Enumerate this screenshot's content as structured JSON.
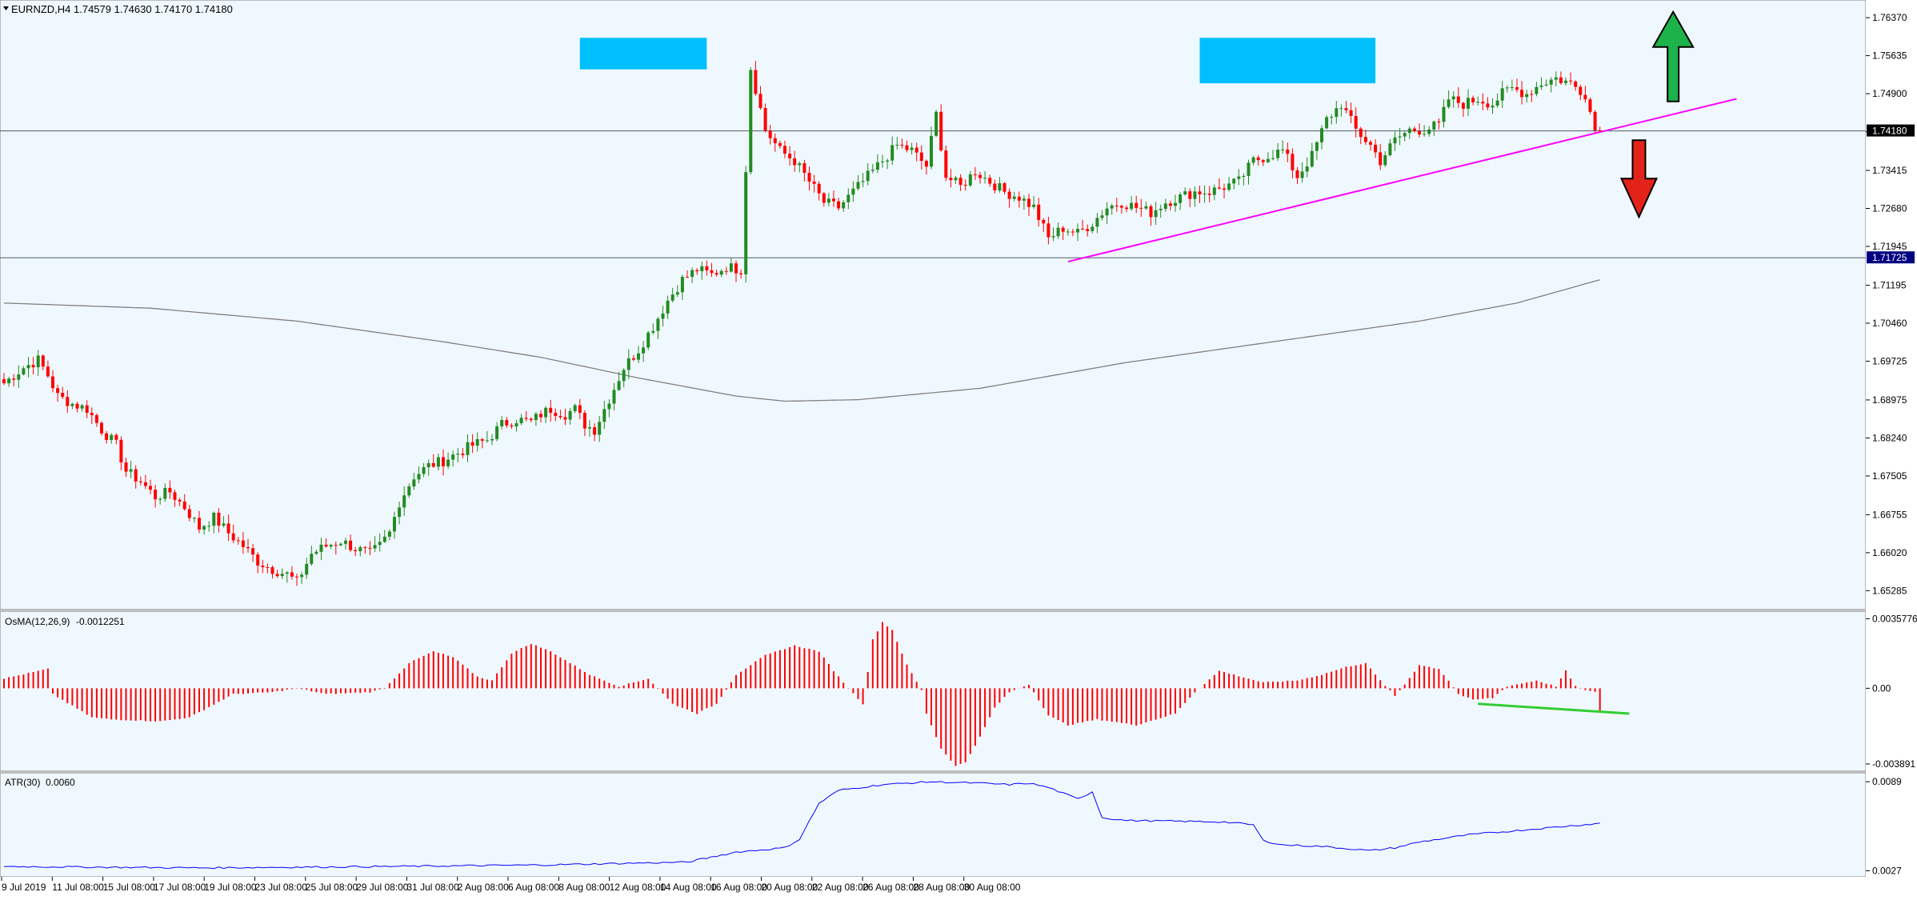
{
  "chart_data": [
    {
      "type": "candlestick",
      "title": "EURNZD,H4",
      "ohlc": "1.74579 1.74630 1.74170 1.74180",
      "last_price": "1.74180",
      "hline_price": "1.71725",
      "ylim": [
        1.6495,
        1.7665
      ],
      "price_ticks": [
        "1.76370",
        "1.75635",
        "1.74900",
        "1.74165",
        "1.73415",
        "1.72680",
        "1.71945",
        "1.71195",
        "1.70460",
        "1.69725",
        "1.68975",
        "1.68240",
        "1.67505",
        "1.66755",
        "1.66020",
        "1.65285"
      ],
      "price_tick_values": [
        1.7637,
        1.75635,
        1.749,
        1.74165,
        1.73415,
        1.7268,
        1.71945,
        1.71195,
        1.7046,
        1.69725,
        1.68975,
        1.6824,
        1.67505,
        1.66755,
        1.6602,
        1.65285
      ],
      "time_labels": [
        "9 Jul 2019",
        "11 Jul 08:00",
        "15 Jul 08:00",
        "17 Jul 08:00",
        "19 Jul 08:00",
        "23 Jul 08:00",
        "25 Jul 08:00",
        "29 Jul 08:00",
        "31 Jul 08:00",
        "2 Aug 08:00",
        "6 Aug 08:00",
        "8 Aug 08:00",
        "12 Aug 08:00",
        "14 Aug 08:00",
        "16 Aug 08:00",
        "20 Aug 08:00",
        "22 Aug 08:00",
        "26 Aug 08:00",
        "28 Aug 08:00",
        "30 Aug 08:00"
      ],
      "close_path": [
        [
          0,
          1.693
        ],
        [
          4,
          1.696
        ],
        [
          7,
          1.6975
        ],
        [
          9,
          1.6945
        ],
        [
          11,
          1.6905
        ],
        [
          14,
          1.689
        ],
        [
          17,
          1.688
        ],
        [
          20,
          1.684
        ],
        [
          23,
          1.681
        ],
        [
          25,
          1.676
        ],
        [
          28,
          1.674
        ],
        [
          31,
          1.671
        ],
        [
          34,
          1.672
        ],
        [
          37,
          1.669
        ],
        [
          40,
          1.665
        ],
        [
          43,
          1.667
        ],
        [
          46,
          1.664
        ],
        [
          49,
          1.6615
        ],
        [
          52,
          1.6585
        ],
        [
          55,
          1.657
        ],
        [
          58,
          1.656
        ],
        [
          60,
          1.6545
        ],
        [
          63,
          1.66
        ],
        [
          66,
          1.6615
        ],
        [
          69,
          1.6625
        ],
        [
          72,
          1.661
        ],
        [
          75,
          1.66
        ],
        [
          77,
          1.6615
        ],
        [
          79,
          1.664
        ],
        [
          81,
          1.67
        ],
        [
          84,
          1.675
        ],
        [
          87,
          1.677
        ],
        [
          90,
          1.678
        ],
        [
          93,
          1.6795
        ],
        [
          96,
          1.681
        ],
        [
          99,
          1.682
        ],
        [
          102,
          1.685
        ],
        [
          105,
          1.686
        ],
        [
          108,
          1.6855
        ],
        [
          110,
          1.687
        ],
        [
          112,
          1.688
        ],
        [
          115,
          1.687
        ],
        [
          117,
          1.688
        ],
        [
          119,
          1.685
        ],
        [
          121,
          1.684
        ],
        [
          124,
          1.69
        ],
        [
          127,
          1.696
        ],
        [
          130,
          1.6995
        ],
        [
          133,
          1.704
        ],
        [
          136,
          1.709
        ],
        [
          139,
          1.713
        ],
        [
          142,
          1.715
        ],
        [
          145,
          1.714
        ],
        [
          148,
          1.7155
        ],
        [
          151,
          1.715
        ],
        [
          153,
          1.754
        ],
        [
          156,
          1.742
        ],
        [
          159,
          1.738
        ],
        [
          162,
          1.736
        ],
        [
          165,
          1.732
        ],
        [
          168,
          1.728
        ],
        [
          171,
          1.727
        ],
        [
          174,
          1.73
        ],
        [
          177,
          1.733
        ],
        [
          180,
          1.736
        ],
        [
          183,
          1.739
        ],
        [
          186,
          1.738
        ],
        [
          189,
          1.735
        ],
        [
          191,
          1.745
        ],
        [
          193,
          1.733
        ],
        [
          196,
          1.731
        ],
        [
          199,
          1.734
        ],
        [
          202,
          1.732
        ],
        [
          205,
          1.73
        ],
        [
          208,
          1.729
        ],
        [
          211,
          1.727
        ],
        [
          214,
          1.721
        ],
        [
          217,
          1.723
        ],
        [
          220,
          1.722
        ],
        [
          223,
          1.724
        ],
        [
          226,
          1.727
        ],
        [
          229,
          1.728
        ],
        [
          232,
          1.727
        ],
        [
          235,
          1.726
        ],
        [
          238,
          1.728
        ],
        [
          241,
          1.729
        ],
        [
          244,
          1.73
        ],
        [
          247,
          1.73
        ],
        [
          250,
          1.731
        ],
        [
          253,
          1.732
        ],
        [
          256,
          1.736
        ],
        [
          259,
          1.737
        ],
        [
          262,
          1.738
        ],
        [
          265,
          1.733
        ],
        [
          268,
          1.737
        ],
        [
          271,
          1.744
        ],
        [
          274,
          1.747
        ],
        [
          277,
          1.742
        ],
        [
          280,
          1.739
        ],
        [
          282,
          1.736
        ],
        [
          285,
          1.74
        ],
        [
          288,
          1.742
        ],
        [
          291,
          1.742
        ],
        [
          294,
          1.743
        ],
        [
          296,
          1.748
        ],
        [
          299,
          1.747
        ],
        [
          302,
          1.748
        ],
        [
          305,
          1.747
        ],
        [
          307,
          1.749
        ],
        [
          309,
          1.75
        ],
        [
          312,
          1.749
        ],
        [
          315,
          1.751
        ],
        [
          318,
          1.752
        ],
        [
          321,
          1.751
        ],
        [
          324,
          1.749
        ],
        [
          326,
          1.742
        ],
        [
          327,
          1.7418
        ]
      ],
      "sma_points": [
        [
          0,
          1.7085
        ],
        [
          30,
          1.7075
        ],
        [
          60,
          1.705
        ],
        [
          90,
          1.701
        ],
        [
          110,
          1.698
        ],
        [
          130,
          1.694
        ],
        [
          150,
          1.6905
        ],
        [
          160,
          1.6895
        ],
        [
          175,
          1.6898
        ],
        [
          200,
          1.692
        ],
        [
          230,
          1.697
        ],
        [
          260,
          1.701
        ],
        [
          290,
          1.705
        ],
        [
          310,
          1.7085
        ],
        [
          327,
          1.713
        ]
      ],
      "zones": [
        [
          118,
          144,
          1.7537,
          1.7598
        ],
        [
          245,
          281,
          1.751,
          1.7598
        ]
      ],
      "trendline": [
        [
          218,
          1.7165
        ],
        [
          355,
          1.748
        ]
      ],
      "up_arrow_price": 1.7475,
      "down_arrow_price": 1.74
    },
    {
      "type": "histogram",
      "title": "OsMA(12,26,9)",
      "last_value": "-0.0012251",
      "y_ticks": [
        "0.0035776",
        "0.00",
        "-0.003891"
      ],
      "y_tick_values": [
        0.0035776,
        0.0,
        -0.003891
      ],
      "ylim": [
        -0.0041,
        0.0038
      ],
      "keys": [
        [
          0,
          0.0005
        ],
        [
          9,
          0.001
        ],
        [
          10,
          -0.0003
        ],
        [
          18,
          -0.0015
        ],
        [
          22,
          -0.0016
        ],
        [
          32,
          -0.0017
        ],
        [
          38,
          -0.0015
        ],
        [
          47,
          -0.0003
        ],
        [
          55,
          -0.0002
        ],
        [
          60,
          0.0
        ],
        [
          66,
          -0.0003
        ],
        [
          75,
          -0.0002
        ],
        [
          78,
          0.0
        ],
        [
          83,
          0.0013
        ],
        [
          88,
          0.0019
        ],
        [
          92,
          0.0016
        ],
        [
          97,
          0.0006
        ],
        [
          100,
          0.0004
        ],
        [
          104,
          0.0018
        ],
        [
          108,
          0.0023
        ],
        [
          112,
          0.0019
        ],
        [
          120,
          0.0007
        ],
        [
          126,
          0.0001
        ],
        [
          132,
          0.0005
        ],
        [
          137,
          -0.0008
        ],
        [
          142,
          -0.0013
        ],
        [
          146,
          -0.0008
        ],
        [
          150,
          0.0007
        ],
        [
          156,
          0.0017
        ],
        [
          162,
          0.0022
        ],
        [
          167,
          0.0019
        ],
        [
          170,
          0.0009
        ],
        [
          173,
          0.0
        ],
        [
          176,
          -0.0008
        ],
        [
          178,
          0.0025
        ],
        [
          180,
          0.0034
        ],
        [
          182,
          0.003
        ],
        [
          185,
          0.0012
        ],
        [
          188,
          -0.0001
        ],
        [
          189,
          -0.0013
        ],
        [
          192,
          -0.0031
        ],
        [
          195,
          -0.004
        ],
        [
          197,
          -0.0038
        ],
        [
          200,
          -0.0025
        ],
        [
          203,
          -0.001
        ],
        [
          206,
          -0.0002
        ],
        [
          210,
          0.0002
        ],
        [
          214,
          -0.0014
        ],
        [
          218,
          -0.0019
        ],
        [
          224,
          -0.0016
        ],
        [
          232,
          -0.0019
        ],
        [
          240,
          -0.0013
        ],
        [
          244,
          -0.0002
        ],
        [
          249,
          0.0009
        ],
        [
          252,
          0.0007
        ],
        [
          258,
          0.0003
        ],
        [
          265,
          0.0004
        ],
        [
          270,
          0.0007
        ],
        [
          275,
          0.0011
        ],
        [
          279,
          0.0013
        ],
        [
          282,
          0.0004
        ],
        [
          285,
          -0.0004
        ],
        [
          287,
          0.0002
        ],
        [
          290,
          0.0012
        ],
        [
          294,
          0.001
        ],
        [
          296,
          0.0004
        ],
        [
          298,
          -0.0003
        ],
        [
          301,
          -0.0006
        ],
        [
          305,
          -0.0005
        ],
        [
          308,
          0.0001
        ],
        [
          314,
          0.0004
        ],
        [
          318,
          0.0001
        ],
        [
          320,
          0.0009
        ],
        [
          322,
          0.0001
        ],
        [
          324,
          -0.0001
        ],
        [
          326,
          -0.0002
        ],
        [
          327,
          -0.0012
        ]
      ],
      "divergence_line": [
        [
          302,
          -0.0008
        ],
        [
          333,
          -0.0013
        ]
      ]
    },
    {
      "type": "line",
      "title": "ATR(30)",
      "last_value": "0.0060",
      "y_ticks": [
        "0.0089",
        "0.0027"
      ],
      "y_tick_values": [
        0.0089,
        0.0027
      ],
      "ylim": [
        0.0025,
        0.0093
      ],
      "points": [
        [
          0,
          0.003
        ],
        [
          40,
          0.0029
        ],
        [
          80,
          0.003
        ],
        [
          110,
          0.0031
        ],
        [
          140,
          0.0033
        ],
        [
          150,
          0.004
        ],
        [
          160,
          0.0043
        ],
        [
          163,
          0.0049
        ],
        [
          167,
          0.0074
        ],
        [
          171,
          0.0083
        ],
        [
          180,
          0.0087
        ],
        [
          190,
          0.0089
        ],
        [
          200,
          0.0088
        ],
        [
          206,
          0.0087
        ],
        [
          210,
          0.0088
        ],
        [
          214,
          0.0085
        ],
        [
          217,
          0.0081
        ],
        [
          220,
          0.0077
        ],
        [
          223,
          0.0082
        ],
        [
          225,
          0.0064
        ],
        [
          230,
          0.0062
        ],
        [
          250,
          0.0061
        ],
        [
          256,
          0.0059
        ],
        [
          258,
          0.0048
        ],
        [
          262,
          0.0045
        ],
        [
          270,
          0.0044
        ],
        [
          280,
          0.0041
        ],
        [
          285,
          0.0043
        ],
        [
          290,
          0.0047
        ],
        [
          300,
          0.0052
        ],
        [
          310,
          0.0055
        ],
        [
          320,
          0.0058
        ],
        [
          327,
          0.006
        ]
      ]
    }
  ],
  "colors": {
    "background": "#f0f8ff",
    "bull": "#228b22",
    "bear": "#ff0000",
    "zone": "#00bfff",
    "trendline": "#ff00ff",
    "sma": "#808080",
    "osma": "#ff0000",
    "divergence": "#32cd32",
    "atr": "#0000ff",
    "up_arrow": "#1db34a",
    "down_arrow": "#e32219",
    "last_price_bg": "#000000",
    "hline_bg": "#000080"
  }
}
